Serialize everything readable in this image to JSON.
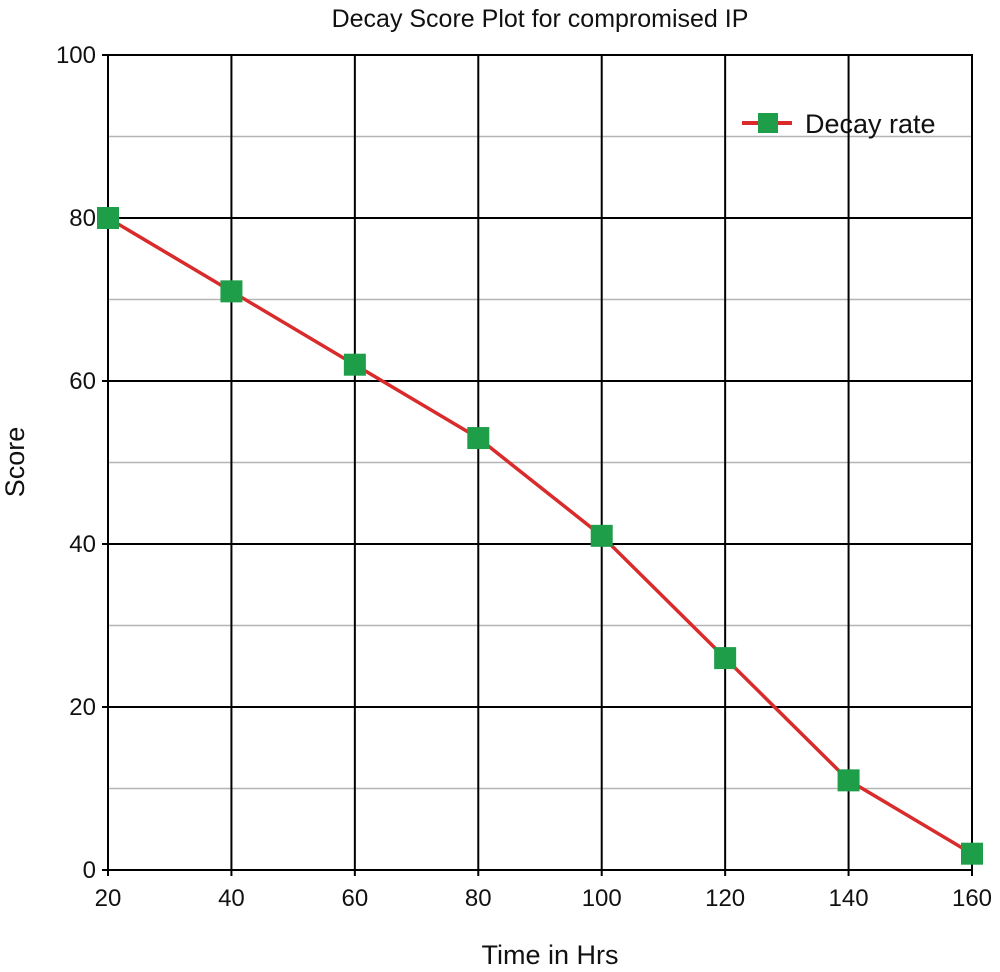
{
  "chart_data": {
    "type": "line",
    "title": "Decay Score Plot for compromised IP",
    "xlabel": "Time in Hrs",
    "ylabel": "Score",
    "x": [
      20,
      40,
      60,
      80,
      100,
      120,
      140,
      160
    ],
    "x_ticks": [
      "20",
      "40",
      "60",
      "80",
      "100",
      "120",
      "140",
      "160"
    ],
    "y_ticks": [
      "0",
      "20",
      "40",
      "60",
      "80",
      "100"
    ],
    "xlim": [
      20,
      160
    ],
    "ylim": [
      0,
      100
    ],
    "grid": true,
    "legend_position": "top-right",
    "series": [
      {
        "name": "Decay rate",
        "values": [
          80,
          71,
          62,
          53,
          41,
          26,
          11,
          2
        ],
        "line_color": "#d92b2b",
        "marker_color": "#1f9e4a",
        "marker": "square"
      }
    ]
  }
}
